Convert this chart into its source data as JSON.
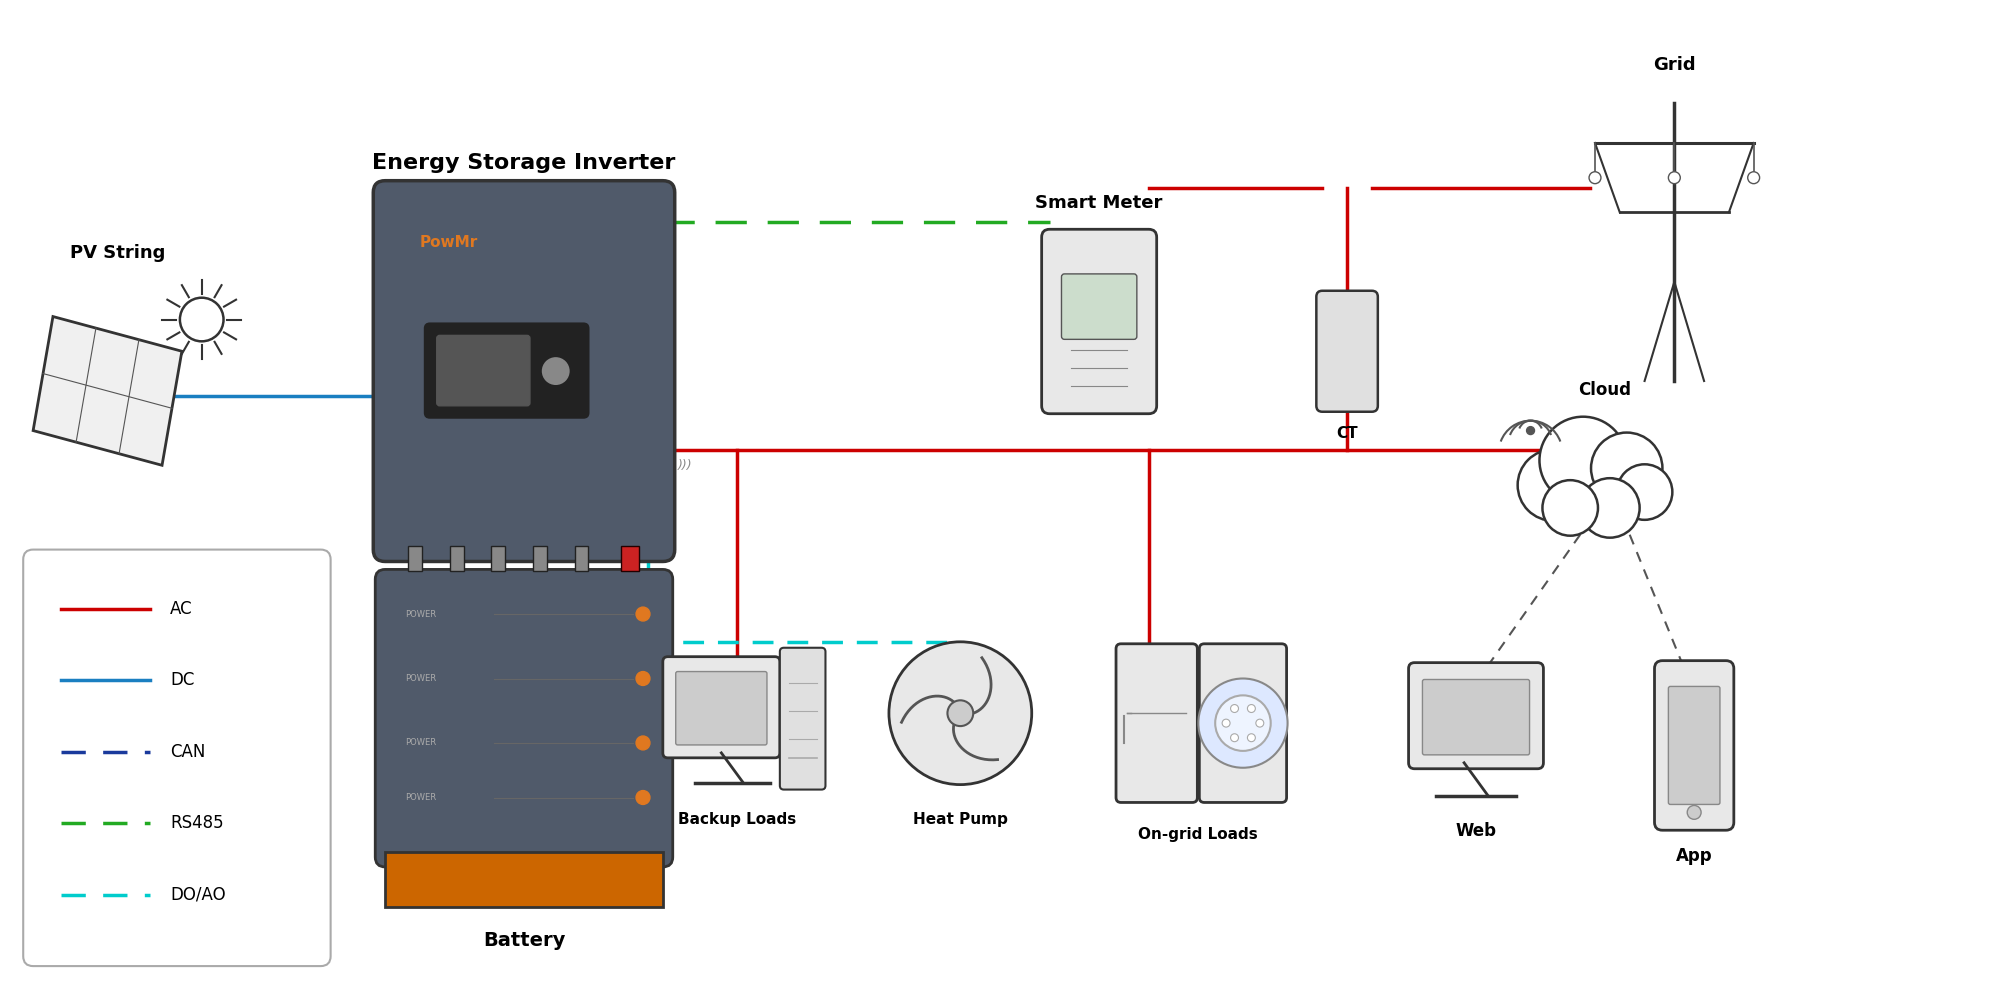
{
  "bg_color": "#ffffff",
  "ac_color": "#cc0000",
  "dc_color": "#1a7fc1",
  "can_color": "#1a3a9c",
  "rs485_color": "#22aa22",
  "doao_color": "#00cccc",
  "inverter_body_color": "#505a6a",
  "inverter_accent_color": "#e07820",
  "battery_body_color": "#505a6a",
  "battery_base_color": "#cc6600",
  "labels": {
    "pv_string": "PV String",
    "inverter": "Energy Storage Inverter",
    "smart_meter": "Smart Meter",
    "grid": "Grid",
    "ct": "CT",
    "battery": "Battery",
    "backup_loads": "Backup Loads",
    "heat_pump": "Heat Pump",
    "ongrid_loads": "On-grid Loads",
    "cloud": "Cloud",
    "web": "Web",
    "app": "App",
    "powmr": "PowMr",
    "ac": "AC",
    "dc": "DC",
    "can": "CAN",
    "rs485": "RS485",
    "doao": "DO/AO"
  }
}
